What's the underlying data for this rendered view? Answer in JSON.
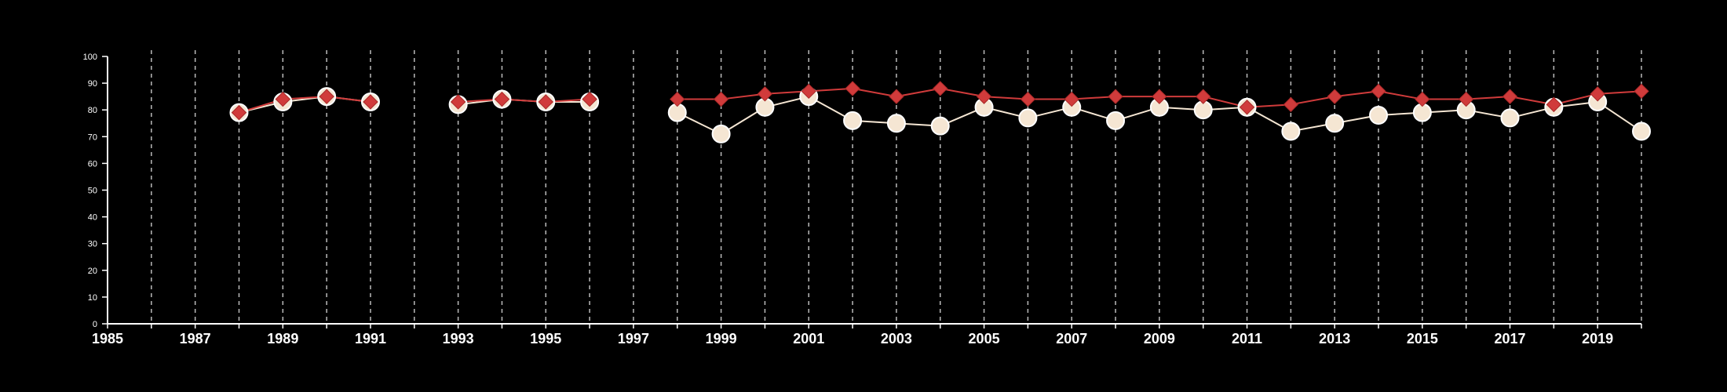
{
  "chart_data": {
    "type": "line",
    "xlim": [
      1985,
      2020
    ],
    "ylim": [
      0,
      100
    ],
    "x_ticks": [
      1985,
      1987,
      1989,
      1991,
      1993,
      1995,
      1997,
      1999,
      2001,
      2003,
      2005,
      2007,
      2009,
      2011,
      2013,
      2015,
      2017,
      2019
    ],
    "y_ticks": [
      0,
      10,
      20,
      30,
      40,
      50,
      60,
      70,
      80,
      90,
      100
    ],
    "vertical_grid": "dashed, every year",
    "series": [
      {
        "marker": "circle",
        "color": "#f5e6d3",
        "points": [
          [
            1988,
            79
          ],
          [
            1989,
            83
          ],
          [
            1990,
            85
          ],
          [
            1991,
            83
          ],
          [
            1993,
            82
          ],
          [
            1994,
            84
          ],
          [
            1995,
            83
          ],
          [
            1996,
            83
          ],
          [
            1998,
            79
          ],
          [
            1999,
            71
          ],
          [
            2000,
            81
          ],
          [
            2001,
            85
          ],
          [
            2002,
            76
          ],
          [
            2003,
            75
          ],
          [
            2004,
            74
          ],
          [
            2005,
            81
          ],
          [
            2006,
            77
          ],
          [
            2007,
            81
          ],
          [
            2008,
            76
          ],
          [
            2009,
            81
          ],
          [
            2010,
            80
          ],
          [
            2011,
            81
          ],
          [
            2012,
            72
          ],
          [
            2013,
            75
          ],
          [
            2014,
            78
          ],
          [
            2015,
            79
          ],
          [
            2016,
            80
          ],
          [
            2017,
            77
          ],
          [
            2018,
            81
          ],
          [
            2019,
            83
          ],
          [
            2020,
            72
          ]
        ]
      },
      {
        "marker": "diamond",
        "color": "#d03b3b",
        "points": [
          [
            1988,
            79
          ],
          [
            1989,
            84
          ],
          [
            1990,
            85
          ],
          [
            1991,
            83
          ],
          [
            1993,
            83
          ],
          [
            1994,
            84
          ],
          [
            1995,
            83
          ],
          [
            1996,
            84
          ],
          [
            1998,
            84
          ],
          [
            1999,
            84
          ],
          [
            2000,
            86
          ],
          [
            2001,
            87
          ],
          [
            2002,
            88
          ],
          [
            2003,
            85
          ],
          [
            2004,
            88
          ],
          [
            2005,
            85
          ],
          [
            2006,
            84
          ],
          [
            2007,
            84
          ],
          [
            2008,
            85
          ],
          [
            2009,
            85
          ],
          [
            2010,
            85
          ],
          [
            2011,
            81
          ],
          [
            2012,
            82
          ],
          [
            2013,
            85
          ],
          [
            2014,
            87
          ],
          [
            2015,
            84
          ],
          [
            2016,
            84
          ],
          [
            2017,
            85
          ],
          [
            2018,
            82
          ],
          [
            2019,
            86
          ],
          [
            2020,
            87
          ]
        ]
      }
    ]
  }
}
